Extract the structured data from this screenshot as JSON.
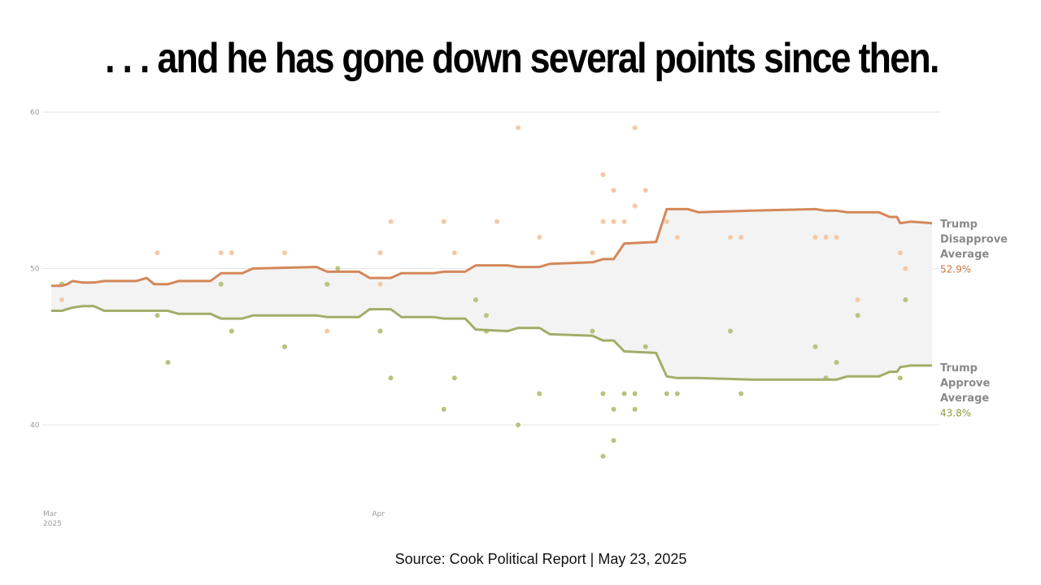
{
  "headline": ". . . and he has gone down several points since then.",
  "source": "Source: Cook Political Report | May 23, 2025",
  "colors": {
    "disapprove_line": "#d4875a",
    "disapprove_dot": "#f5c9a3",
    "approve_line": "#a3ad6a",
    "approve_dot": "#b6c47e",
    "band": "#f3f3f3",
    "grid": "#e6e6e6",
    "approve_value": "#8a9a3c",
    "disapprove_value": "#c4743f"
  },
  "chart_data": {
    "type": "line",
    "x_unit": "day index from Mar 1, 2025",
    "ylim": [
      35,
      60
    ],
    "yticks": [
      40,
      50,
      60
    ],
    "xticks": [
      {
        "x": 0,
        "label": "Mar",
        "sublabel": "2025"
      },
      {
        "x": 31,
        "label": "Apr",
        "sublabel": ""
      }
    ],
    "xlim": [
      0,
      83
    ],
    "series": [
      {
        "key": "disapprove",
        "name_lines": [
          "Trump",
          "Disapprove",
          "Average"
        ],
        "value_label": "52.9%",
        "points": [
          [
            0,
            48.9
          ],
          [
            1,
            48.9
          ],
          [
            1.5,
            49.0
          ],
          [
            2,
            49.2
          ],
          [
            3,
            49.1
          ],
          [
            4,
            49.1
          ],
          [
            5,
            49.2
          ],
          [
            8,
            49.2
          ],
          [
            9,
            49.4
          ],
          [
            9.7,
            49.0
          ],
          [
            11,
            49.0
          ],
          [
            12,
            49.2
          ],
          [
            15,
            49.2
          ],
          [
            16,
            49.7
          ],
          [
            18,
            49.7
          ],
          [
            19,
            50.0
          ],
          [
            25,
            50.1
          ],
          [
            26,
            49.8
          ],
          [
            29,
            49.8
          ],
          [
            30,
            49.4
          ],
          [
            32,
            49.4
          ],
          [
            33,
            49.7
          ],
          [
            36,
            49.7
          ],
          [
            37,
            49.8
          ],
          [
            39,
            49.8
          ],
          [
            40,
            50.2
          ],
          [
            43,
            50.2
          ],
          [
            44,
            50.1
          ],
          [
            46,
            50.1
          ],
          [
            47,
            50.3
          ],
          [
            51,
            50.4
          ],
          [
            52,
            50.6
          ],
          [
            53,
            50.6
          ],
          [
            54,
            51.6
          ],
          [
            57,
            51.7
          ],
          [
            58,
            53.8
          ],
          [
            59,
            53.8
          ],
          [
            60,
            53.8
          ],
          [
            61,
            53.6
          ],
          [
            66,
            53.7
          ],
          [
            72,
            53.8
          ],
          [
            73,
            53.7
          ],
          [
            74,
            53.7
          ],
          [
            75,
            53.6
          ],
          [
            78,
            53.6
          ],
          [
            79,
            53.3
          ],
          [
            79.7,
            53.3
          ],
          [
            80,
            52.9
          ],
          [
            81,
            53.0
          ],
          [
            83,
            52.9
          ]
        ]
      },
      {
        "key": "approve",
        "name_lines": [
          "Trump",
          "Approve",
          "Average"
        ],
        "value_label": "43.8%",
        "points": [
          [
            0,
            47.3
          ],
          [
            1,
            47.3
          ],
          [
            2,
            47.5
          ],
          [
            3,
            47.6
          ],
          [
            4,
            47.6
          ],
          [
            5,
            47.3
          ],
          [
            11,
            47.3
          ],
          [
            12,
            47.1
          ],
          [
            15,
            47.1
          ],
          [
            16,
            46.8
          ],
          [
            18,
            46.8
          ],
          [
            19,
            47.0
          ],
          [
            25,
            47.0
          ],
          [
            26,
            46.9
          ],
          [
            29,
            46.9
          ],
          [
            30,
            47.4
          ],
          [
            32,
            47.4
          ],
          [
            33,
            46.9
          ],
          [
            36,
            46.9
          ],
          [
            37,
            46.8
          ],
          [
            39,
            46.8
          ],
          [
            40,
            46.1
          ],
          [
            43,
            46.0
          ],
          [
            44,
            46.2
          ],
          [
            46,
            46.2
          ],
          [
            47,
            45.8
          ],
          [
            51,
            45.7
          ],
          [
            52,
            45.4
          ],
          [
            53,
            45.4
          ],
          [
            54,
            44.7
          ],
          [
            57,
            44.6
          ],
          [
            58,
            43.1
          ],
          [
            59,
            43.0
          ],
          [
            60,
            43.0
          ],
          [
            61,
            43.0
          ],
          [
            66,
            42.9
          ],
          [
            67,
            42.9
          ],
          [
            72,
            42.9
          ],
          [
            73,
            42.9
          ],
          [
            74,
            42.9
          ],
          [
            75,
            43.1
          ],
          [
            78,
            43.1
          ],
          [
            79,
            43.4
          ],
          [
            79.7,
            43.4
          ],
          [
            80,
            43.7
          ],
          [
            81,
            43.8
          ],
          [
            83,
            43.8
          ]
        ]
      }
    ],
    "polls_disapprove": [
      [
        1,
        48
      ],
      [
        10,
        51
      ],
      [
        16,
        51
      ],
      [
        17,
        51
      ],
      [
        22,
        51
      ],
      [
        26,
        46
      ],
      [
        27,
        50
      ],
      [
        31,
        49
      ],
      [
        31,
        51
      ],
      [
        32,
        53
      ],
      [
        37,
        53
      ],
      [
        38,
        51
      ],
      [
        41,
        46
      ],
      [
        42,
        53
      ],
      [
        44,
        59
      ],
      [
        46,
        52
      ],
      [
        51,
        51
      ],
      [
        52,
        56
      ],
      [
        52,
        53
      ],
      [
        53,
        55
      ],
      [
        53,
        53
      ],
      [
        54,
        53
      ],
      [
        55,
        54
      ],
      [
        55,
        59
      ],
      [
        56,
        55
      ],
      [
        58,
        53
      ],
      [
        59,
        52
      ],
      [
        64,
        52
      ],
      [
        65,
        52
      ],
      [
        72,
        52
      ],
      [
        73,
        52
      ],
      [
        74,
        52
      ],
      [
        76,
        48
      ],
      [
        80,
        51
      ],
      [
        80.5,
        50
      ]
    ],
    "polls_approve": [
      [
        1,
        49
      ],
      [
        10,
        47
      ],
      [
        11,
        44
      ],
      [
        16,
        49
      ],
      [
        17,
        46
      ],
      [
        22,
        45
      ],
      [
        26,
        49
      ],
      [
        27,
        50
      ],
      [
        31,
        46
      ],
      [
        32,
        43
      ],
      [
        37,
        41
      ],
      [
        38,
        43
      ],
      [
        40,
        48
      ],
      [
        41,
        46
      ],
      [
        41,
        47
      ],
      [
        44,
        40
      ],
      [
        46,
        42
      ],
      [
        51,
        46
      ],
      [
        52,
        42
      ],
      [
        52,
        38
      ],
      [
        53,
        41
      ],
      [
        53,
        39
      ],
      [
        54,
        42
      ],
      [
        55,
        42
      ],
      [
        55,
        41
      ],
      [
        56,
        45
      ],
      [
        58,
        42
      ],
      [
        59,
        42
      ],
      [
        64,
        46
      ],
      [
        65,
        42
      ],
      [
        72,
        45
      ],
      [
        73,
        43
      ],
      [
        74,
        44
      ],
      [
        76,
        47
      ],
      [
        80,
        43
      ],
      [
        80.5,
        48
      ]
    ]
  }
}
